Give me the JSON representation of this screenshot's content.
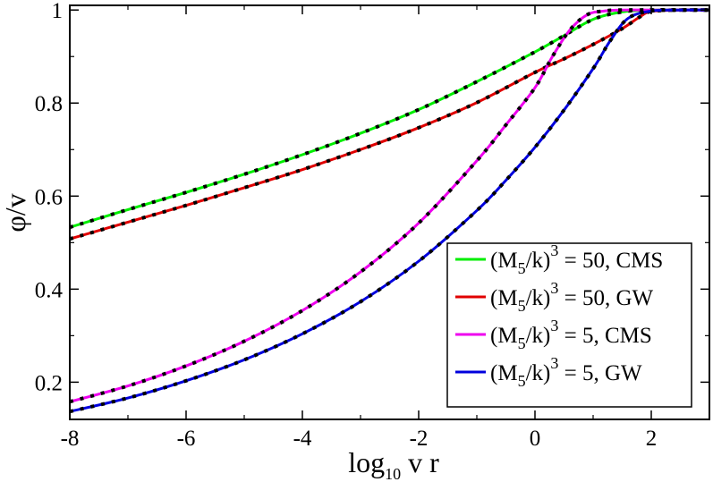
{
  "chart_data": {
    "type": "line",
    "title": "",
    "xlabel": {
      "main": "log",
      "sub": "10",
      "tail": " v r"
    },
    "ylabel": "φ/v",
    "xlim": [
      -8,
      3
    ],
    "ylim": [
      0.12,
      1.01
    ],
    "x_ticks": [
      "-8",
      "-6",
      "-4",
      "-2",
      "0",
      "2"
    ],
    "y_ticks": [
      "0.2",
      "0.4",
      "0.6",
      "0.8",
      "1"
    ],
    "grid": false,
    "legend_position": "bottom-right",
    "series": [
      {
        "name": "(M5/k)^3 = 50, CMS",
        "label_prefix": "(M",
        "label_sub": "5",
        "label_mid": "/k)",
        "label_sup": "3",
        "label_tail": " = 50, CMS",
        "color": "#00ee00",
        "x": [
          -8,
          -7,
          -6,
          -5,
          -4,
          -3,
          -2,
          -1,
          0,
          0.5,
          1,
          1.5,
          2,
          2.5,
          3
        ],
        "y": [
          0.533,
          0.571,
          0.608,
          0.647,
          0.689,
          0.735,
          0.786,
          0.846,
          0.91,
          0.945,
          0.98,
          0.996,
          1.0,
          1.0,
          1.0
        ]
      },
      {
        "name": "(M5/k)^3 = 50, GW",
        "label_prefix": "(M",
        "label_sub": "5",
        "label_mid": "/k)",
        "label_sup": "3",
        "label_tail": " = 50, GW",
        "color": "#e00000",
        "x": [
          -8,
          -7,
          -6,
          -5,
          -4,
          -3,
          -2,
          -1,
          0,
          0.5,
          1,
          1.5,
          1.8,
          2,
          2.5,
          3
        ],
        "y": [
          0.508,
          0.544,
          0.58,
          0.618,
          0.657,
          0.7,
          0.747,
          0.801,
          0.866,
          0.895,
          0.926,
          0.96,
          0.985,
          0.997,
          1.0,
          1.0
        ]
      },
      {
        "name": "(M5/k)^3 = 5, CMS",
        "label_prefix": "(M",
        "label_sub": "5",
        "label_mid": "/k)",
        "label_sup": "3",
        "label_tail": " = 5, CMS",
        "color": "#ee00ee",
        "x": [
          -8,
          -7,
          -6,
          -5,
          -4,
          -3,
          -2,
          -1,
          -0.5,
          0,
          0.3,
          0.6,
          0.9,
          1.2,
          1.5,
          2,
          2.5,
          3
        ],
        "y": [
          0.158,
          0.192,
          0.235,
          0.288,
          0.354,
          0.437,
          0.542,
          0.676,
          0.753,
          0.833,
          0.9,
          0.957,
          0.99,
          0.998,
          1.0,
          1.0,
          1.0,
          1.0
        ]
      },
      {
        "name": "(M5/k)^3 = 5, GW",
        "label_prefix": "(M",
        "label_sub": "5",
        "label_mid": "/k)",
        "label_sup": "3",
        "label_tail": " = 5, GW",
        "color": "#0000dd",
        "x": [
          -8,
          -7,
          -6,
          -5,
          -4,
          -3,
          -2,
          -1,
          -0.5,
          0,
          0.5,
          1,
          1.3,
          1.6,
          2,
          2.5,
          3
        ],
        "y": [
          0.137,
          0.166,
          0.203,
          0.248,
          0.304,
          0.373,
          0.46,
          0.569,
          0.634,
          0.705,
          0.785,
          0.874,
          0.935,
          0.982,
          0.998,
          1.0,
          1.0
        ]
      }
    ]
  }
}
